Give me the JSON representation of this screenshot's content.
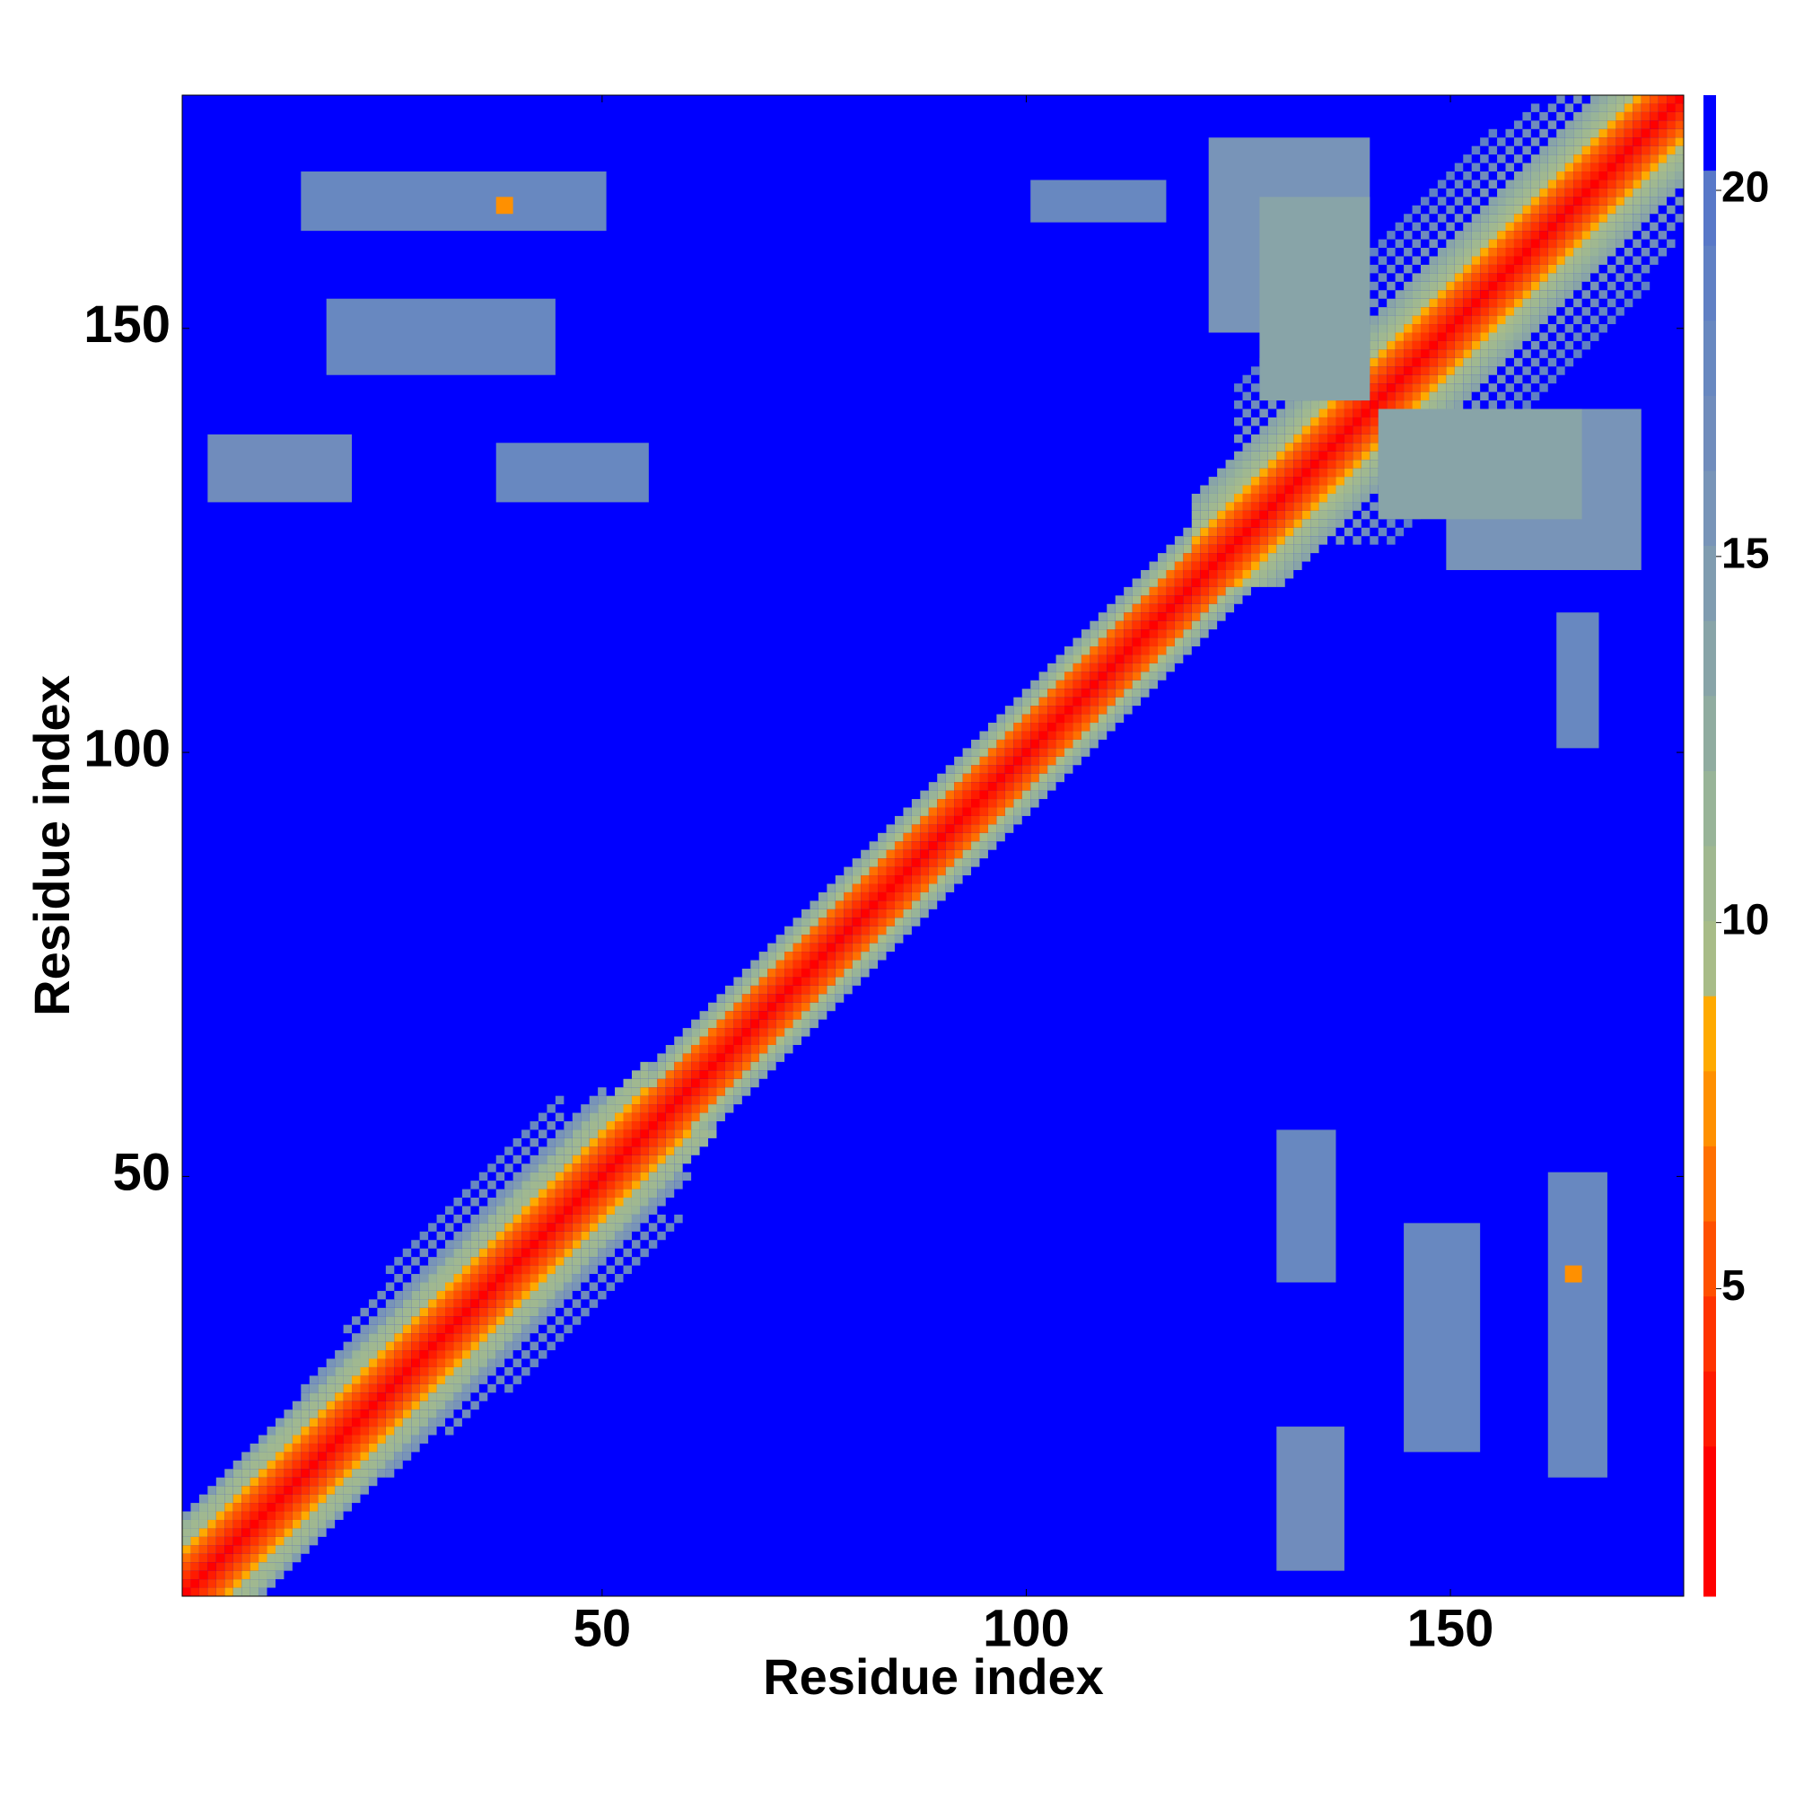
{
  "chart_data": {
    "type": "heatmap",
    "xlabel": "Residue index",
    "ylabel": "Residue index",
    "xlim": [
      0.5,
      177.5
    ],
    "ylim": [
      0.5,
      177.5
    ],
    "xticks": [
      50,
      100,
      150
    ],
    "yticks": [
      50,
      100,
      150
    ],
    "symmetric": true,
    "colormap": [
      "#ff0000",
      "#ff0000",
      "#ff1a00",
      "#ff3300",
      "#ff5000",
      "#ff7000",
      "#ff9000",
      "#ffaa00",
      "#a8bc88",
      "#a0b890",
      "#98b498",
      "#90aca0",
      "#88a4a8",
      "#809cb0",
      "#7894b8",
      "#708cbc",
      "#6888c0",
      "#6080c4",
      "#5878c8",
      "#0000ff"
    ],
    "clim": [
      0.8,
      21.3
    ],
    "colorbar_ticks": [
      5,
      10,
      15,
      20
    ],
    "bands": [
      {
        "offset": 0,
        "start": 1,
        "end": 177,
        "value": 1
      },
      {
        "offset": 1,
        "start": 1,
        "end": 176,
        "value": 3.8
      },
      {
        "offset": 2,
        "start": 1,
        "end": 175,
        "value": 4.5
      },
      {
        "offset": 3,
        "start": 1,
        "end": 174,
        "value": 5
      },
      {
        "offset": 4,
        "start": 1,
        "end": 173,
        "value": 6.2
      },
      {
        "offset": 5,
        "start": 1,
        "end": 55,
        "value": 8.6
      },
      {
        "offset": 5,
        "start": 56,
        "end": 119,
        "value": 10
      },
      {
        "offset": 5,
        "start": 120,
        "end": 172,
        "value": 9
      },
      {
        "offset": 6,
        "start": 1,
        "end": 55,
        "value": 10.5
      },
      {
        "offset": 6,
        "start": 56,
        "end": 119,
        "value": 12
      },
      {
        "offset": 6,
        "start": 120,
        "end": 171,
        "value": 10
      },
      {
        "offset": 7,
        "start": 1,
        "end": 55,
        "value": 11
      },
      {
        "offset": 7,
        "start": 56,
        "end": 119,
        "value": 14
      },
      {
        "offset": 7,
        "start": 120,
        "end": 170,
        "value": 11
      },
      {
        "offset": 8,
        "start": 1,
        "end": 55,
        "value": 12
      },
      {
        "offset": 8,
        "start": 120,
        "end": 169,
        "value": 12
      },
      {
        "offset": 9,
        "start": 1,
        "end": 50,
        "value": 15
      },
      {
        "offset": 9,
        "start": 120,
        "end": 168,
        "value": 13
      },
      {
        "offset": 10,
        "start": 15,
        "end": 50,
        "value": 16
      },
      {
        "offset": 10,
        "start": 120,
        "end": 167,
        "value": 14
      },
      {
        "offset": 12,
        "start": 20,
        "end": 45,
        "value": 17
      },
      {
        "offset": 12,
        "start": 125,
        "end": 165,
        "value": 16
      },
      {
        "offset": 14,
        "start": 25,
        "end": 45,
        "value": 18
      },
      {
        "offset": 14,
        "start": 125,
        "end": 163,
        "value": 17
      },
      {
        "offset": 16,
        "start": 125,
        "end": 160,
        "value": 18
      },
      {
        "offset": 18,
        "start": 125,
        "end": 155,
        "value": 19
      }
    ],
    "patches": [
      {
        "x_range": [
          122,
          140
        ],
        "y_range": [
          150,
          172
        ],
        "value": 16
      },
      {
        "x_range": [
          128,
          140
        ],
        "y_range": [
          142,
          165
        ],
        "value": 14
      },
      {
        "x_range": [
          15,
          50
        ],
        "y_range": [
          162,
          168
        ],
        "value": 18
      },
      {
        "x_range": [
          4,
          20
        ],
        "y_range": [
          130,
          137
        ],
        "value": 17
      },
      {
        "x_range": [
          38,
          55
        ],
        "y_range": [
          130,
          136
        ],
        "value": 18
      },
      {
        "x_range": [
          18,
          44
        ],
        "y_range": [
          145,
          153
        ],
        "value": 18
      },
      {
        "x_range": [
          101,
          116
        ],
        "y_range": [
          163,
          167
        ],
        "value": 18
      },
      {
        "x_range": [
          38,
          39
        ],
        "y_range": [
          164,
          165
        ],
        "value": 7
      }
    ]
  }
}
